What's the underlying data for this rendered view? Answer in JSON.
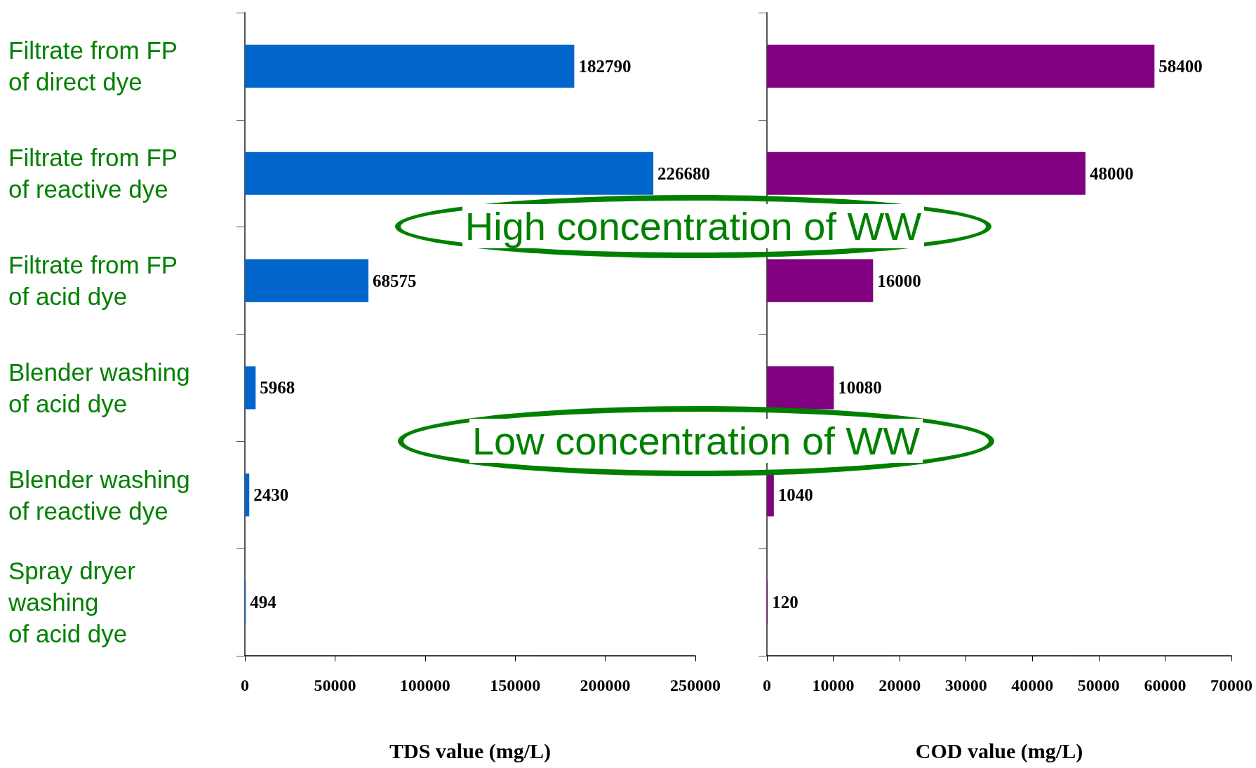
{
  "chart_data": [
    {
      "type": "bar",
      "orientation": "horizontal",
      "xlabel": "TDS value (mg/L)",
      "categories": [
        "Filtrate from FP\nof direct dye",
        "Filtrate from FP\nof reactive dye",
        "Filtrate from FP\nof acid dye",
        "Blender washing\nof acid dye",
        "Blender washing\nof reactive dye",
        "Spray dryer\nwashing\nof acid dye"
      ],
      "values": [
        182790,
        226680,
        68575,
        5968,
        2430,
        494
      ],
      "color": "#0066cc",
      "data_labels": true,
      "xlim": [
        0,
        250000
      ],
      "xticks": [
        0,
        50000,
        100000,
        150000,
        200000,
        250000
      ],
      "grid": false,
      "annotations": [
        "High concentration of WW",
        "Low concentration of WW"
      ]
    },
    {
      "type": "bar",
      "orientation": "horizontal",
      "xlabel": "COD value (mg/L)",
      "categories": [
        null,
        null,
        null,
        null,
        null,
        null
      ],
      "values": [
        58400,
        48000,
        16000,
        10080,
        1040,
        120
      ],
      "color": "#800080",
      "data_labels": true,
      "xlim": [
        0,
        70000
      ],
      "xticks": [
        0,
        10000,
        20000,
        30000,
        40000,
        50000,
        60000,
        70000
      ],
      "grid": false
    }
  ]
}
